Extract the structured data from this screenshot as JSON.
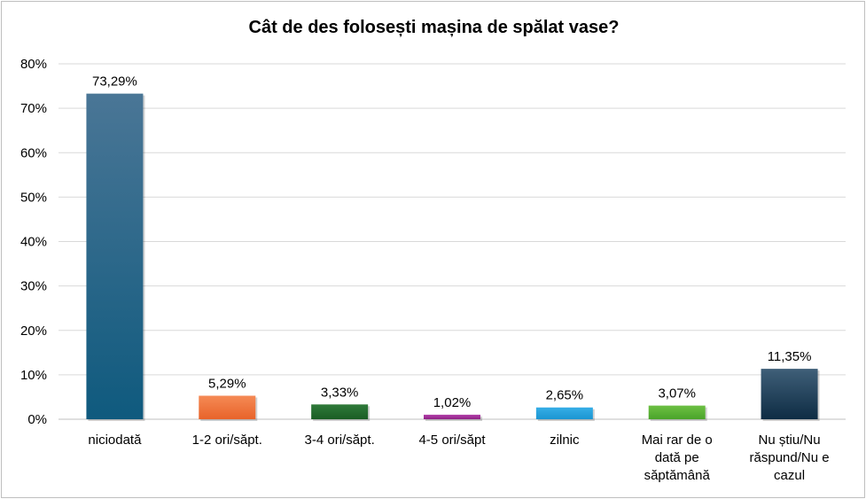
{
  "chart_data": {
    "type": "bar",
    "title": "Cât de des folosești mașina de spălat vase?",
    "categories": [
      [
        "niciodată"
      ],
      [
        "1-2 ori/săpt."
      ],
      [
        "3-4 ori/săpt."
      ],
      [
        "4-5 ori/săpt"
      ],
      [
        "zilnic"
      ],
      [
        "Mai rar de o",
        "dată pe",
        "săptămână"
      ],
      [
        "Nu știu/Nu",
        "răspund/Nu e",
        "cazul"
      ]
    ],
    "values": [
      73.29,
      5.29,
      3.33,
      1.02,
      2.65,
      3.07,
      11.35
    ],
    "value_labels": [
      "73,29%",
      "5,29%",
      "3,33%",
      "1,02%",
      "2,65%",
      "3,07%",
      "11,35%"
    ],
    "bar_colors": [
      [
        "#4a7696",
        "#0f5a7e"
      ],
      [
        "#f58a55",
        "#e8632a"
      ],
      [
        "#2f7a3a",
        "#1a5d24"
      ],
      [
        "#b23fa9",
        "#8f2385"
      ],
      [
        "#35aee6",
        "#1b95d2"
      ],
      [
        "#6dc043",
        "#4aa42a"
      ],
      [
        "#3f5f78",
        "#0e2c44"
      ]
    ],
    "ylim": [
      0,
      80
    ],
    "yticks": [
      0,
      10,
      20,
      30,
      40,
      50,
      60,
      70,
      80
    ],
    "ytick_labels": [
      "0%",
      "10%",
      "20%",
      "30%",
      "40%",
      "50%",
      "60%",
      "70%",
      "80%"
    ],
    "xlabel": "",
    "ylabel": "",
    "grid": true,
    "legend": "none"
  }
}
